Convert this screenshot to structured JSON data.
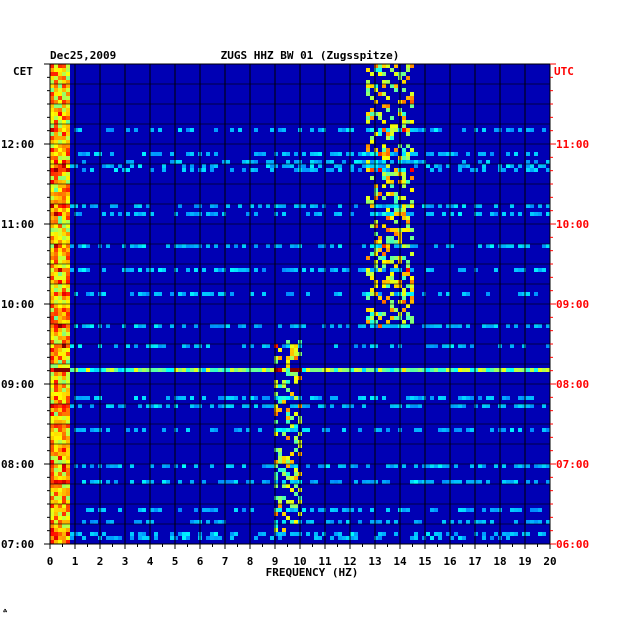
{
  "chart_data": {
    "type": "heatmap",
    "date": "Dec25,2009",
    "title": "ZUGS HHZ BW 01 (Zugsspitze)",
    "left_axis_title": "CET",
    "right_axis_title": "UTC",
    "xlabel": "FREQUENCY (HZ)",
    "xlim": [
      0,
      20
    ],
    "x_ticks": [
      "0",
      "1",
      "2",
      "3",
      "4",
      "5",
      "6",
      "7",
      "8",
      "9",
      "10",
      "11",
      "12",
      "13",
      "14",
      "15",
      "16",
      "17",
      "18",
      "19",
      "20"
    ],
    "y_ticks_cet": [
      "12:00",
      "11:00",
      "10:00",
      "09:00",
      "08:00",
      "07:00"
    ],
    "y_ticks_utc": [
      "11:00",
      "10:00",
      "09:00",
      "08:00",
      "07:00",
      "06:00"
    ],
    "y_range_cet": [
      "07:00",
      "13:00"
    ],
    "grid": true,
    "colors": {
      "background": "#0000b4",
      "grid": "#000000",
      "cet_text": "#000000",
      "utc_text": "#ff0000"
    },
    "features": [
      {
        "label": "low-frequency energy",
        "freq_hz": [
          0,
          0.8
        ],
        "time_cet": [
          "07:00",
          "13:00"
        ]
      },
      {
        "label": "tonal band",
        "freq_hz": [
          12.6,
          14.5
        ],
        "time_cet": [
          "09:45",
          "13:00"
        ]
      },
      {
        "label": "line",
        "freq_hz": [
          9,
          10
        ],
        "time_cet": [
          "07:10",
          "09:30"
        ]
      },
      {
        "label": "broadband line",
        "freq_hz": [
          0,
          20
        ],
        "time_cet": [
          "09:11",
          "09:11"
        ]
      }
    ]
  },
  "footer": {
    "mark": "☘"
  }
}
